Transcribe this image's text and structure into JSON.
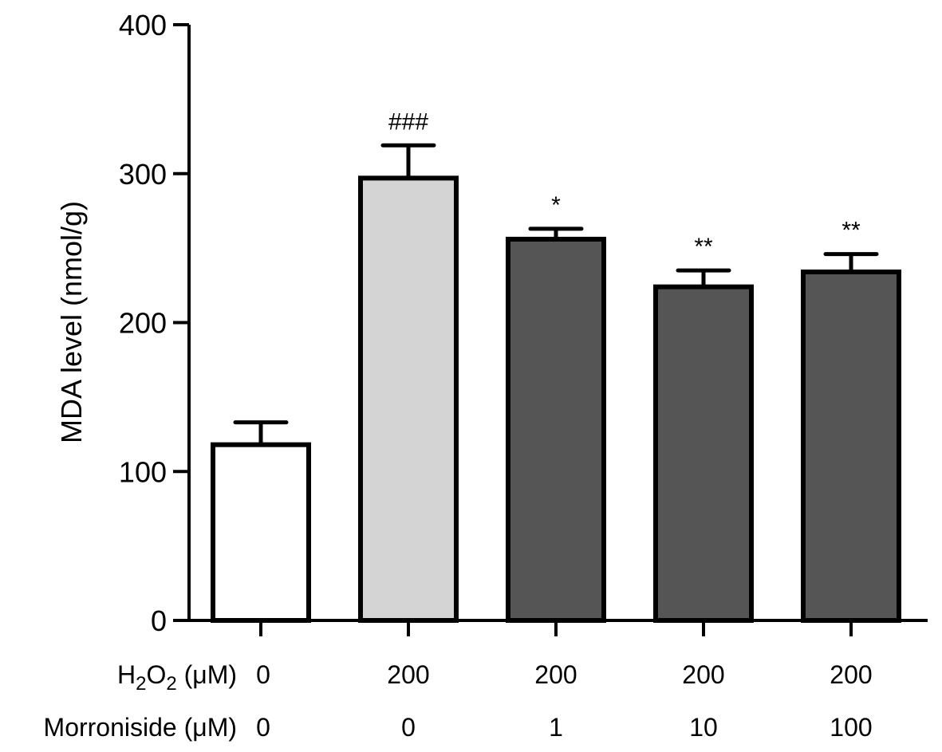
{
  "chart_data": {
    "type": "bar",
    "title": "",
    "xlabel": "",
    "ylabel": "MDA level (nmol/g)",
    "ylim": [
      0,
      400
    ],
    "yticks": [
      0,
      100,
      200,
      300,
      400
    ],
    "grid": false,
    "legend": "none",
    "bars": [
      {
        "value": 118,
        "error": 15,
        "annotation": "",
        "fill": "#ffffff"
      },
      {
        "value": 297,
        "error": 22,
        "annotation": "###",
        "fill": "#d4d4d4"
      },
      {
        "value": 256,
        "error": 7,
        "annotation": "*",
        "fill": "#555555"
      },
      {
        "value": 224,
        "error": 11,
        "annotation": "**",
        "fill": "#555555"
      },
      {
        "value": 234,
        "error": 12,
        "annotation": "**",
        "fill": "#555555"
      }
    ],
    "category_rows": [
      {
        "label_prefix": "H",
        "label_sub1": "2",
        "label_mid": "O",
        "label_sub2": "2",
        "label_suffix": " (μM)",
        "values": [
          "0",
          "200",
          "200",
          "200",
          "200"
        ]
      },
      {
        "label": "Morroniside (μM)",
        "values": [
          "0",
          "0",
          "1",
          "10",
          "100"
        ]
      }
    ]
  }
}
